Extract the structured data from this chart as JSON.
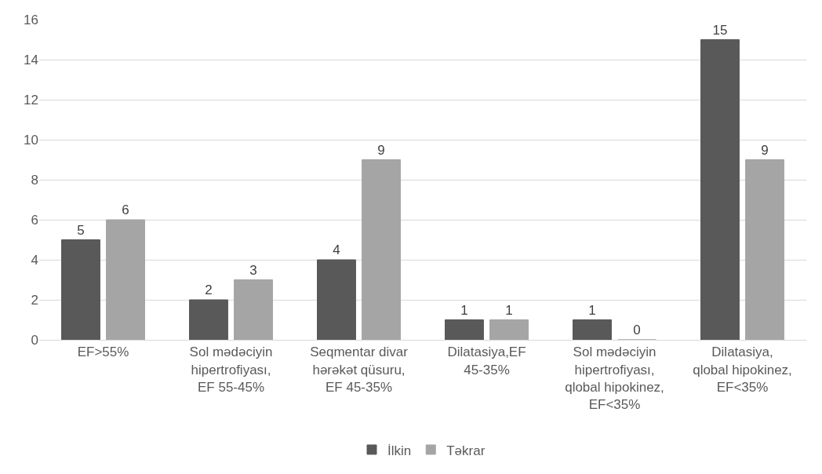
{
  "chart_data": {
    "type": "bar",
    "categories": [
      "EF>55%",
      "Sol mədəciyin hipertrofiyası, EF 55-45%",
      "Seqmentar divar hərəkət qüsuru, EF 45-35%",
      "Dilatasiya,EF 45-35%",
      "Sol mədəciyin hipertrofiyası, qlobal hipokinez, EF<35%",
      "Dilatasiya, qlobal hipokinez, EF<35%"
    ],
    "series": [
      {
        "name": "İlkin",
        "color": "#595959",
        "values": [
          5,
          2,
          4,
          1,
          1,
          15
        ]
      },
      {
        "name": "Təkrar",
        "color": "#a5a5a5",
        "values": [
          6,
          3,
          9,
          1,
          0,
          9
        ]
      }
    ],
    "ylim": [
      0,
      16
    ],
    "yticks": [
      0,
      2,
      4,
      6,
      8,
      10,
      12,
      14,
      16
    ],
    "grid": "y",
    "legend": "bottom",
    "data_labels": true
  }
}
